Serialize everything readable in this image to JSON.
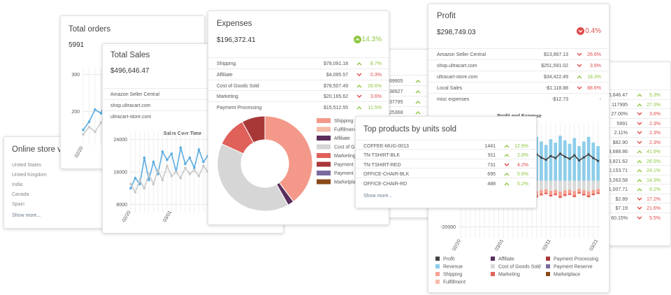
{
  "online_store_visits": {
    "title": "Online store visits",
    "rows": [
      "United States",
      "United Kingdom",
      "India",
      "Canada",
      "Spain"
    ],
    "show_more": "Show more..."
  },
  "total_orders": {
    "title": "Total orders",
    "value": "5991",
    "chart": {
      "type": "line",
      "categories": [
        "02/20",
        null,
        null,
        null,
        null,
        null,
        null,
        null,
        null,
        null
      ],
      "series": [
        {
          "color": "#5aace1",
          "values": [
            150,
            172,
            205,
            195,
            240,
            225,
            250,
            215,
            235,
            220
          ]
        },
        {
          "color": "#c9c9c9",
          "values": [
            138,
            158,
            145,
            170,
            160,
            185,
            170,
            180,
            190,
            175
          ]
        }
      ],
      "ylim": [
        110,
        320
      ],
      "yticks": [
        200,
        300
      ],
      "grid": true
    }
  },
  "total_sales": {
    "title": "Total Sales",
    "value": "$496,646.47",
    "rows": [
      "Amazon Seller Central",
      "shop.ultracart.com",
      "ultracart-store.com"
    ],
    "chart": {
      "type": "line",
      "title": "Sales Over Time",
      "categories": [
        "02/20",
        null,
        null,
        null,
        null,
        null,
        null,
        null,
        null,
        "03/01",
        null,
        null,
        null,
        null,
        null,
        null,
        null,
        null,
        null,
        null
      ],
      "series": [
        {
          "color": "#5aace1",
          "values": [
            12000,
            14500,
            13000,
            19500,
            14000,
            18500,
            15500,
            21000,
            19000,
            20500,
            16000,
            22000,
            18000,
            19500,
            17000,
            21500,
            18500,
            20000,
            17500,
            19000
          ]
        },
        {
          "color": "#c9c9c9",
          "values": [
            13000,
            11000,
            14000,
            12000,
            15500,
            13000,
            16500,
            14000,
            17500,
            15000,
            16000,
            14500,
            17000,
            15500,
            16500,
            15000,
            17500,
            16000,
            15000,
            16500
          ]
        }
      ],
      "ylim": [
        6000,
        26000
      ],
      "yticks": [
        8000,
        16000,
        24000
      ],
      "grid": true
    }
  },
  "expenses": {
    "title": "Expenses",
    "value": "$196,372.41",
    "change": "14.3%",
    "direction": "up",
    "rows": [
      {
        "label": "Shipping",
        "amount": "$78,091.18",
        "change": "8.7%",
        "direction": "up"
      },
      {
        "label": "Affiliate",
        "amount": "$4,095.57",
        "change": "0.3%",
        "direction": "down"
      },
      {
        "label": "Cost of Goods Sold",
        "amount": "$78,507.49",
        "change": "28.6%",
        "direction": "up"
      },
      {
        "label": "Marketing",
        "amount": "$20,165.62",
        "change": "3.6%",
        "direction": "down"
      },
      {
        "label": "Payment Processing",
        "amount": "$15,512.55",
        "change": "11.5%",
        "direction": "up"
      }
    ],
    "chart": {
      "type": "donut",
      "categories": [
        "Shipping",
        "Fulfillment",
        "Affiliate",
        "Cost of Goods Sold",
        "Marketing",
        "Payment Processing",
        "Payment Reserve",
        "Marketplace"
      ],
      "values": [
        78091.18,
        0,
        4095.57,
        78507.49,
        20165.62,
        15512.55,
        0,
        0
      ],
      "colors": [
        "#f4998a",
        "#f6bba9",
        "#5a2d5c",
        "#d6d6d6",
        "#e0605a",
        "#a83838",
        "#7a6aa0",
        "#8a4a1a"
      ]
    }
  },
  "hidden_card": {
    "rows": [
      "69905",
      "38927",
      "37795",
      "25368"
    ],
    "directions": [
      "up",
      "up",
      "up",
      "up"
    ]
  },
  "profit": {
    "title": "Profit",
    "value": "$298,749.03",
    "change": "0.4%",
    "direction": "down",
    "rows": [
      {
        "label": "Amazon Seller Central",
        "amount": "$13,867.13",
        "change": "26.6%",
        "direction": "down"
      },
      {
        "label": "shop.ultracart.com",
        "amount": "$251,591.02",
        "change": "3.9%",
        "direction": "down"
      },
      {
        "label": "ultracart-store.com",
        "amount": "$34,422.49",
        "change": "18.3%",
        "direction": "up"
      },
      {
        "label": "Local Sales",
        "amount": "-$1,118.88",
        "change": "88.6%",
        "direction": "down"
      },
      {
        "label": "misc expenses",
        "amount": "-$12.73",
        "change": "-",
        "direction": "flat"
      }
    ],
    "chart": {
      "type": "bar",
      "title": "Profit and Expense",
      "categories": [
        "02/20",
        null,
        null,
        null,
        null,
        null,
        null,
        null,
        null,
        "03/01",
        null,
        null,
        null,
        null,
        null,
        null,
        null,
        null,
        null,
        "03/11",
        null,
        null,
        null,
        null,
        null,
        null,
        null,
        null,
        null,
        "03/21"
      ],
      "ylim": [
        -25000,
        25000
      ],
      "yticks": [
        -20000
      ],
      "grid": true,
      "series": [
        {
          "name": "Profit",
          "color": "#444444",
          "kind": "line",
          "values": [
            8000,
            9500,
            11000,
            8500,
            10500,
            11500,
            9800,
            9200,
            10800,
            10200,
            11800,
            9500,
            8800,
            11000,
            10400,
            9400,
            11500,
            10000,
            9100,
            10700,
            9800,
            11700,
            10400,
            9500,
            11000,
            8800,
            10100,
            11400,
            9800,
            8600
          ]
        },
        {
          "name": "Affiliate",
          "color": "#5a2d5c"
        },
        {
          "name": "Payment Processing",
          "color": "#a83838"
        },
        {
          "name": "Revenue",
          "color": "#8ecdea",
          "kind": "bar",
          "values": [
            14000,
            16000,
            18500,
            15000,
            17500,
            19000,
            16500,
            15500,
            18000,
            17000,
            19500,
            16000,
            15000,
            18500,
            17500,
            16000,
            19000,
            17000,
            15500,
            18000,
            16500,
            19500,
            17500,
            16000,
            18500,
            15000,
            17000,
            19000,
            16500,
            15000
          ]
        },
        {
          "name": "Cost of Goods Sold",
          "color": "#d9d9d9",
          "kind": "bar",
          "values": [
            -3500,
            -4000,
            -4500,
            -3800,
            -4200,
            -4600,
            -4000,
            -3700,
            -4400,
            -4100,
            -4800,
            -3900,
            -3600,
            -4500,
            -4200,
            -3900,
            -4600,
            -4100,
            -3700,
            -4400,
            -4000,
            -4700,
            -4200,
            -3900,
            -4500,
            -3600,
            -4100,
            -4600,
            -4000,
            -3600
          ]
        },
        {
          "name": "Payment Reserve",
          "color": "#7a6aa0"
        },
        {
          "name": "Shipping",
          "color": "#f5a090",
          "kind": "bar",
          "values": [
            -1400,
            -1600,
            -1800,
            -1500,
            -1700,
            -1900,
            -1600,
            -1500,
            -1700,
            -1600,
            -1900,
            -1500,
            -1400,
            -1800,
            -1700,
            -1600,
            -1800,
            -1600,
            -1500,
            -1700,
            -1600,
            -1900,
            -1700,
            -1600,
            -1800,
            -1400,
            -1600,
            -1800,
            -1600,
            -1500
          ]
        },
        {
          "name": "Marketing",
          "color": "#e2625a",
          "kind": "bar",
          "values": [
            -600,
            -700,
            -800,
            -650,
            -750,
            -850,
            -700,
            -650,
            -800,
            -700,
            -850,
            -650,
            -600,
            -800,
            -750,
            -700,
            -800,
            -700,
            -650,
            -750,
            -700,
            -850,
            -750,
            -700,
            -800,
            -600,
            -700,
            -800,
            -700,
            -650
          ]
        },
        {
          "name": "Marketplace",
          "color": "#8a4a1a"
        },
        {
          "name": "Fulfillment",
          "color": "#f6bba9"
        }
      ]
    }
  },
  "summary_card": {
    "rows": [
      {
        "value": "6,646.47",
        "change": "5.3%",
        "direction": "up"
      },
      {
        "value": "117995",
        "change": "27.3%",
        "direction": "up"
      },
      {
        "value": "27.00%",
        "change": "3.6%",
        "direction": "down"
      },
      {
        "value": "5991",
        "change": "2.3%",
        "direction": "down"
      },
      {
        "value": "2.11%",
        "change": "2.3%",
        "direction": "down"
      },
      {
        "value": "$82.90",
        "change": "2.3%",
        "direction": "down"
      },
      {
        "value": "3,688.86",
        "change": "41.9%",
        "direction": "up"
      },
      {
        "value": "8,821.62",
        "change": "26.5%",
        "direction": "up"
      },
      {
        "value": "0,153.71",
        "change": "24.1%",
        "direction": "up"
      },
      {
        "value": "6,263.58",
        "change": "14.3%",
        "direction": "up"
      },
      {
        "value": "1,007.71",
        "change": "8.2%",
        "direction": "up"
      },
      {
        "value": "$2.89",
        "change": "17.2%",
        "direction": "down"
      },
      {
        "value": "$7.19",
        "change": "21.6%",
        "direction": "down"
      },
      {
        "value": "60.15%",
        "change": "5.5%",
        "direction": "down"
      }
    ]
  },
  "top_products": {
    "title": "Top products by units sold",
    "show_more": "Show more...",
    "rows": [
      {
        "label": "COFFEE-MUG-0013",
        "amount": "1441",
        "change": "12.9%",
        "direction": "up"
      },
      {
        "label": "TN-TSHIRT-BLK",
        "amount": "911",
        "change": "2.8%",
        "direction": "up"
      },
      {
        "label": "TN-TSHIRT-RED",
        "amount": "731",
        "change": "4.2%",
        "direction": "down"
      },
      {
        "label": "OFFICE-CHAIR-BLK",
        "amount": "695",
        "change": "5.6%",
        "direction": "up"
      },
      {
        "label": "OFFICE-CHAIR-RD",
        "amount": "488",
        "change": "5.2%",
        "direction": "up"
      }
    ]
  }
}
